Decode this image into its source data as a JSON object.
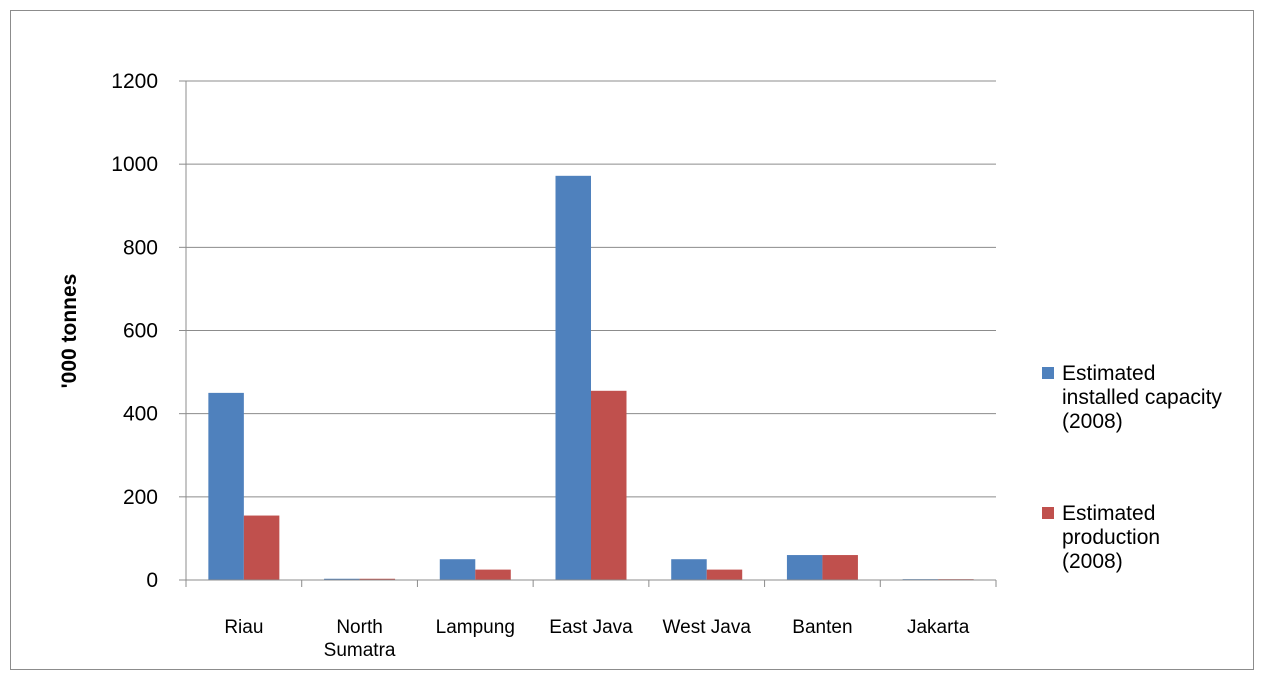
{
  "chart_data": {
    "type": "bar",
    "title": "",
    "xlabel": "",
    "ylabel": "'000 tonnes",
    "ylim": [
      0,
      1200
    ],
    "yticks": [
      "0",
      "200",
      "400",
      "600",
      "800",
      "1000",
      "1200"
    ],
    "grid": true,
    "legend_position": "right",
    "categories": [
      [
        "Riau"
      ],
      [
        "North",
        "Sumatra"
      ],
      [
        "Lampung"
      ],
      [
        "East Java"
      ],
      [
        "West Java"
      ],
      [
        "Banten"
      ],
      [
        "Jakarta"
      ]
    ],
    "series": [
      {
        "name": [
          "Estimated",
          "installed capacity",
          "(2008)"
        ],
        "color": "#4f81bd",
        "values": [
          450,
          3,
          50,
          972,
          50,
          60,
          2
        ]
      },
      {
        "name": [
          "Estimated",
          "production",
          "(2008)"
        ],
        "color": "#c0504d",
        "values": [
          155,
          3,
          25,
          455,
          25,
          60,
          2
        ]
      }
    ]
  }
}
